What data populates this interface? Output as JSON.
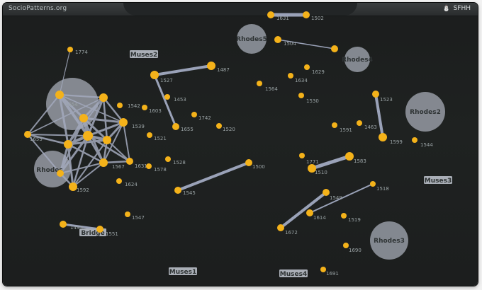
{
  "app": {
    "brand": "SocioPatterns.org",
    "top_right_label": "SFHH"
  },
  "rooms": [
    {
      "id": "muses2",
      "label": "Muses2"
    },
    {
      "id": "muses3",
      "label": "Muses3"
    },
    {
      "id": "muses1",
      "label": "Muses1"
    },
    {
      "id": "muses4",
      "label": "Muses4"
    },
    {
      "id": "bridge",
      "label": "Bridge"
    },
    {
      "id": "rhodes5",
      "label": "Rhodes5"
    },
    {
      "id": "rhodes4",
      "label": "Rhodes4"
    },
    {
      "id": "rhodes2",
      "label": "Rhodes2"
    },
    {
      "id": "rhodes3",
      "label": "Rhodes3"
    },
    {
      "id": "rhodes1",
      "label": "Rhodes"
    },
    {
      "id": "rhodes_big",
      "label": ""
    }
  ],
  "badges": {
    "b1774": "1774",
    "b1487": "1487",
    "b1453": "1453",
    "b1603": "1603",
    "b1742": "1742",
    "b1655": "1655",
    "b1528": "1528",
    "b1521": "1521",
    "b1520": "1520",
    "b1578": "1578",
    "b1624": "1624",
    "b1545": "1545",
    "b1500": "1500",
    "b1547": "1547",
    "b1592": "1592",
    "b1631": "1631",
    "b1542": "1542",
    "b1539": "1539",
    "b1567": "1567",
    "b1502": "1502",
    "b1504": "1504",
    "b1629": "1629",
    "b1634": "1634",
    "b1564": "1564",
    "b1530": "1530",
    "b1523": "1523",
    "b1591": "1591",
    "b1463": "1463",
    "b1599": "1599",
    "b1544": "1544",
    "b1771": "1771",
    "b1510": "1510",
    "b1583": "1583",
    "b1518": "1518",
    "b1549": "1549",
    "b1614": "1614",
    "b1519": "1519",
    "b1672": "1672",
    "b1690": "1690",
    "b1691": "1691",
    "b1493": "1493",
    "b1551": "1551",
    "b1527": "1527",
    "b1655b": "1655",
    "b1554": "1554"
  },
  "colors": {
    "background": "#1e2121",
    "node": "#f4b21a",
    "edge": "#9aa2b8",
    "room_circle": "#8f939c",
    "room_label_bg": "#a9aeb6"
  },
  "icons": {
    "user_icon": "person-icon"
  }
}
